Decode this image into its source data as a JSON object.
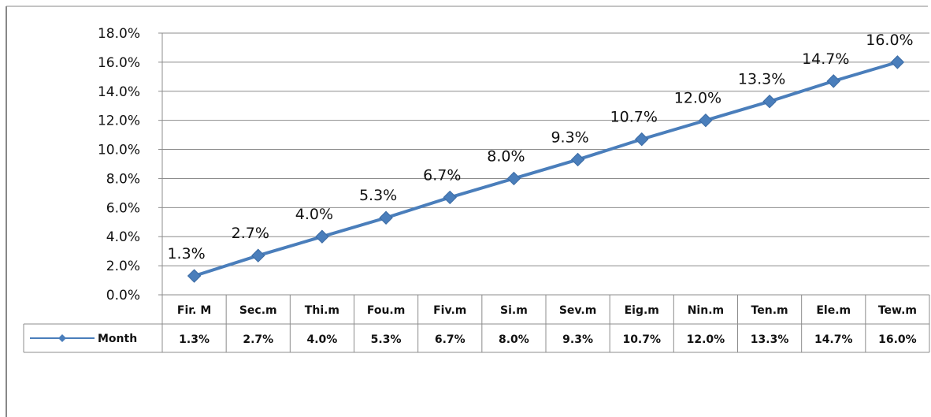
{
  "chart_data": {
    "type": "line",
    "title": "",
    "xlabel": "",
    "ylabel": "",
    "ylim": [
      0,
      18
    ],
    "y_ticks": [
      "0.0%",
      "2.0%",
      "4.0%",
      "6.0%",
      "8.0%",
      "10.0%",
      "12.0%",
      "14.0%",
      "16.0%",
      "18.0%"
    ],
    "categories": [
      "Fir. M",
      "Sec.m",
      "Thi.m",
      "Fou.m",
      "Fiv.m",
      "Si.m",
      "Sev.m",
      "Eig.m",
      "Nin.m",
      "Ten.m",
      "Ele.m",
      "Tew.m"
    ],
    "series": [
      {
        "name": "Month",
        "values": [
          1.3,
          2.7,
          4.0,
          5.3,
          6.7,
          8.0,
          9.3,
          10.7,
          12.0,
          13.3,
          14.7,
          16.0
        ],
        "labels": [
          "1.3%",
          "2.7%",
          "4.0%",
          "5.3%",
          "6.7%",
          "8.0%",
          "9.3%",
          "10.7%",
          "12.0%",
          "13.3%",
          "14.7%",
          "16.0%"
        ],
        "color": "#4a7ebb"
      }
    ],
    "grid": true,
    "legend": "data-table-left"
  }
}
